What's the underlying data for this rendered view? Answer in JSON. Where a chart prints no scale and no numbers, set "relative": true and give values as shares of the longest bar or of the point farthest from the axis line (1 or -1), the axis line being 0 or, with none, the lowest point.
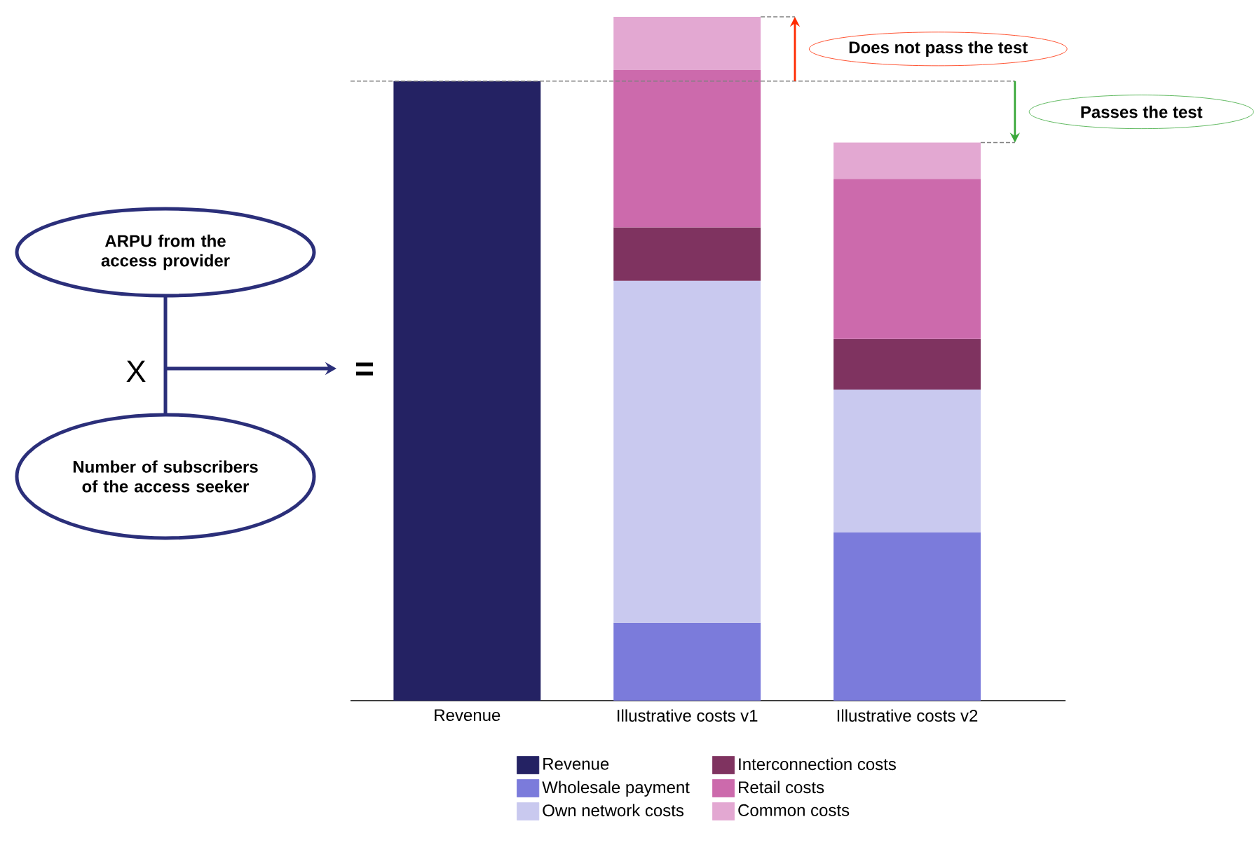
{
  "chart_data": {
    "type": "bar",
    "stacked": true,
    "relative": true,
    "categories": [
      "Revenue",
      "Illustrative costs v1",
      "Illustrative costs v2"
    ],
    "series": [
      {
        "name": "Revenue",
        "color": "#242263",
        "values": [
          0.906,
          null,
          null
        ]
      },
      {
        "name": "Wholesale payment",
        "color": "#7b7bdb",
        "values": [
          null,
          0.114,
          0.246
        ]
      },
      {
        "name": "Own network costs",
        "color": "#c9c9ef",
        "values": [
          null,
          0.5,
          0.209
        ]
      },
      {
        "name": "Interconnection costs",
        "color": "#7f3360",
        "values": [
          null,
          0.078,
          0.074
        ]
      },
      {
        "name": "Retail costs",
        "color": "#cc6aac",
        "values": [
          null,
          0.23,
          0.234
        ]
      },
      {
        "name": "Common costs",
        "color": "#e3a8d2",
        "values": [
          null,
          0.078,
          0.053
        ]
      }
    ],
    "annotations": [
      "ARPU from the access provider",
      "X",
      "Number of subscribers of the access seeker",
      "=",
      "Does not pass the test",
      "Passes the test"
    ],
    "ref_lines": [
      {
        "axis": "y",
        "value": 0.906,
        "line_style": "dashed",
        "color": "#808080"
      }
    ],
    "legend": "bottom"
  }
}
